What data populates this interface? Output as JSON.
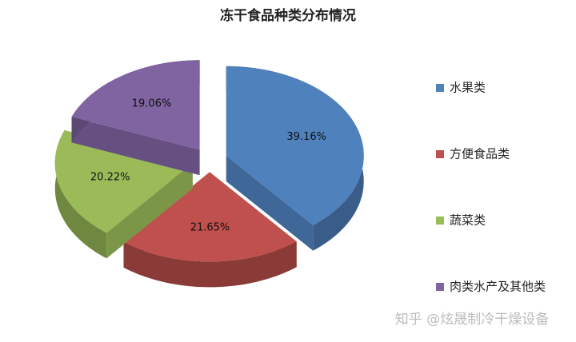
{
  "chart_data": {
    "type": "pie3d",
    "title": "冻干食品种类分布情况",
    "categories": [
      "水果类",
      "方便食品类",
      "蔬菜类",
      "肉类水产及其他类"
    ],
    "values": [
      39.16,
      21.65,
      20.22,
      19.06
    ],
    "value_labels": [
      "39.16%",
      "21.65%",
      "20.22%",
      "19.06%"
    ],
    "colors": [
      "#4f81bd",
      "#c0504d",
      "#9bbb59",
      "#8064a2"
    ],
    "legend": "right"
  },
  "watermark": "知乎 @炫晟制冷干燥设备"
}
